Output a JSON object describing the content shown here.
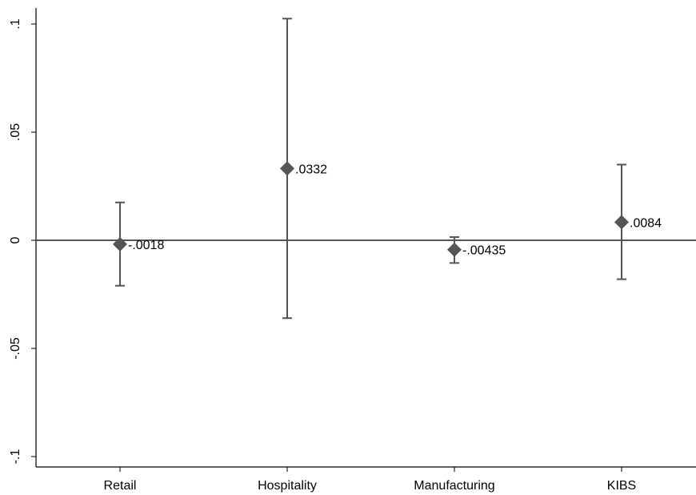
{
  "chart_data": {
    "type": "scatter",
    "categories": [
      "Retail",
      "Hospitality",
      "Manufacturing",
      "KIBS"
    ],
    "series": [
      {
        "values": [
          -0.0018,
          0.0332,
          -0.00435,
          0.0084
        ],
        "ci_low": [
          -0.021,
          -0.036,
          -0.0105,
          -0.018
        ],
        "ci_high": [
          0.0175,
          0.1025,
          0.0015,
          0.035
        ],
        "data_labels": [
          "-.0018",
          ".0332",
          "-.00435",
          ".0084"
        ],
        "marker": "diamond",
        "color": "#555555"
      }
    ],
    "yticks": [
      {
        "value": 0.1,
        "label": ".1"
      },
      {
        "value": 0.05,
        "label": ".05"
      },
      {
        "value": 0,
        "label": "0"
      },
      {
        "value": -0.05,
        "label": "-.05"
      },
      {
        "value": -0.1,
        "label": "-.1"
      }
    ],
    "ylim": [
      -0.1,
      0.1
    ],
    "reference_line": 0,
    "grid": false,
    "title": "",
    "xlabel": "",
    "ylabel": ""
  }
}
